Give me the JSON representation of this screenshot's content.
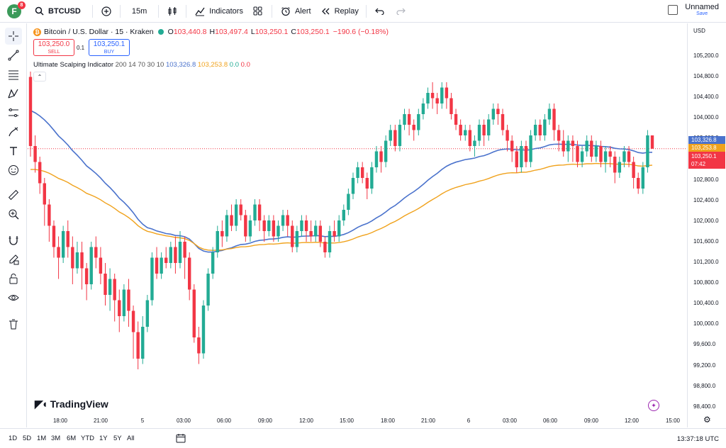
{
  "topbar": {
    "avatar_letter": "F",
    "avatar_badge": "8",
    "symbol": "BTCUSD",
    "interval": "15m",
    "indicators_label": "Indicators",
    "alert_label": "Alert",
    "replay_label": "Replay",
    "layout_title": "Unnamed",
    "layout_save": "Save"
  },
  "legend": {
    "title": "Bitcoin / U.S. Dollar · 15 · Kraken",
    "o_label": "O",
    "o_value": "103,440.8",
    "h_label": "H",
    "h_value": "103,497.4",
    "l_label": "L",
    "l_value": "103,250.1",
    "c_label": "C",
    "c_value": "103,250.1",
    "change": "−190.6 (−0.18%)"
  },
  "trade": {
    "sell_price": "103,250.0",
    "sell_label": "SELL",
    "spread": "0.1",
    "buy_price": "103,250.1",
    "buy_label": "BUY"
  },
  "indicator": {
    "name": "Ultimate Scalping Indicator",
    "params": "200 14 70 30 10",
    "v1": "103,326.8",
    "v2": "103,253.8",
    "v3": "0.0",
    "v4": "0.0"
  },
  "branding": "TradingView",
  "price_scale": {
    "currency": "USD",
    "ticks": [
      "105,200.0",
      "104,800.0",
      "104,400.0",
      "104,000.0",
      "103,600.0",
      "103,200.0",
      "102,800.0",
      "102,400.0",
      "102,000.0",
      "101,600.0",
      "101,200.0",
      "100,800.0",
      "100,400.0",
      "100,000.0",
      "99,600.0",
      "99,200.0",
      "98,800.0",
      "98,400.0"
    ],
    "tag_blue": "103,326.8",
    "tag_orange": "103,253.8",
    "tag_red": "103,250.1",
    "countdown": "07:42"
  },
  "time_ticks": [
    "18:00",
    "21:00",
    "5",
    "03:00",
    "06:00",
    "09:00",
    "12:00",
    "15:00",
    "18:00",
    "21:00",
    "6",
    "03:00",
    "06:00",
    "09:00",
    "12:00",
    "15:00"
  ],
  "ranges": [
    "1D",
    "5D",
    "1M",
    "3M",
    "6M",
    "YTD",
    "1Y",
    "5Y",
    "All"
  ],
  "clock": "13:37:18 UTC",
  "colors": {
    "up": "#22ab94",
    "down": "#f23645",
    "blue_line": "#4a72cc",
    "orange_line": "#f0a21c"
  },
  "chart_data": {
    "type": "candlestick",
    "ylim": [
      98300,
      105500
    ],
    "candles": [
      [
        104600,
        103300,
        104700,
        103100
      ],
      [
        103300,
        103000,
        103500,
        102800
      ],
      [
        103000,
        102600,
        103100,
        102400
      ],
      [
        102600,
        102200,
        102700,
        101800
      ],
      [
        102200,
        101800,
        102300,
        101500
      ],
      [
        101800,
        101400,
        101900,
        101200
      ],
      [
        101400,
        101200,
        101600,
        100800
      ],
      [
        101200,
        101700,
        101800,
        101100
      ],
      [
        101700,
        101400,
        101900,
        101200
      ],
      [
        101400,
        101000,
        101600,
        100700
      ],
      [
        101000,
        101300,
        101500,
        100900
      ],
      [
        101300,
        101000,
        101500,
        100600
      ],
      [
        101000,
        100700,
        101100,
        100400
      ],
      [
        100700,
        101400,
        101500,
        100600
      ],
      [
        101400,
        101200,
        101600,
        101000
      ],
      [
        101200,
        100900,
        101400,
        100700
      ],
      [
        100900,
        100500,
        101100,
        100300
      ],
      [
        100500,
        100800,
        101000,
        100200
      ],
      [
        100800,
        100400,
        100900,
        100000
      ],
      [
        100400,
        100100,
        100600,
        99800
      ],
      [
        100100,
        100600,
        100700,
        100000
      ],
      [
        100600,
        100200,
        100800,
        99900
      ],
      [
        100200,
        99800,
        100300,
        99300
      ],
      [
        99800,
        99300,
        100000,
        99100
      ],
      [
        99300,
        99900,
        100100,
        99200
      ],
      [
        99900,
        100400,
        100500,
        99800
      ],
      [
        100400,
        101200,
        101300,
        100300
      ],
      [
        101200,
        100900,
        101400,
        100800
      ],
      [
        100900,
        101200,
        101300,
        100800
      ],
      [
        101200,
        101100,
        101400,
        101000
      ],
      [
        101100,
        101400,
        101500,
        101000
      ],
      [
        101400,
        101100,
        101600,
        100900
      ],
      [
        101100,
        101500,
        101700,
        101000
      ],
      [
        101500,
        101200,
        101600,
        100800
      ],
      [
        101200,
        100600,
        101300,
        100400
      ],
      [
        100600,
        99700,
        100700,
        99600
      ],
      [
        99700,
        99400,
        99900,
        99200
      ],
      [
        99400,
        100300,
        100400,
        99300
      ],
      [
        100300,
        100900,
        101000,
        100200
      ],
      [
        100900,
        101300,
        101400,
        100800
      ],
      [
        101300,
        101700,
        101800,
        101200
      ],
      [
        101700,
        101600,
        101900,
        101400
      ],
      [
        101600,
        102000,
        102100,
        101500
      ],
      [
        102000,
        101800,
        102200,
        101700
      ],
      [
        101800,
        102200,
        102300,
        101700
      ],
      [
        102200,
        102000,
        102300,
        101900
      ],
      [
        102000,
        101600,
        102100,
        101500
      ],
      [
        101600,
        101900,
        102000,
        101500
      ],
      [
        101900,
        102200,
        102300,
        101800
      ],
      [
        102200,
        101900,
        102300,
        101700
      ],
      [
        101900,
        101700,
        102000,
        101500
      ],
      [
        101700,
        101900,
        102000,
        101600
      ],
      [
        101900,
        101600,
        102000,
        101500
      ],
      [
        101600,
        101800,
        101900,
        101500
      ],
      [
        101800,
        102000,
        102100,
        101700
      ],
      [
        102000,
        101800,
        102100,
        101600
      ],
      [
        101800,
        101400,
        101900,
        101300
      ],
      [
        101400,
        101700,
        101800,
        101300
      ],
      [
        101700,
        101900,
        102000,
        101600
      ],
      [
        101900,
        101700,
        102000,
        101500
      ],
      [
        101700,
        101600,
        101900,
        101500
      ],
      [
        101600,
        101800,
        101900,
        101500
      ],
      [
        101800,
        101500,
        101900,
        101400
      ],
      [
        101500,
        101300,
        101600,
        101200
      ],
      [
        101300,
        101700,
        101800,
        101200
      ],
      [
        101700,
        101600,
        101900,
        101500
      ],
      [
        101600,
        101900,
        102000,
        101500
      ],
      [
        101900,
        102100,
        102200,
        101800
      ],
      [
        102100,
        102400,
        102500,
        102000
      ],
      [
        102400,
        102700,
        102800,
        102300
      ],
      [
        102700,
        102900,
        103000,
        102600
      ],
      [
        102900,
        102700,
        103000,
        102600
      ],
      [
        102700,
        102500,
        102800,
        102300
      ],
      [
        102500,
        102900,
        103000,
        102400
      ],
      [
        102900,
        103200,
        103300,
        102800
      ],
      [
        103200,
        103000,
        103300,
        102800
      ],
      [
        103000,
        103400,
        103500,
        102900
      ],
      [
        103400,
        103600,
        103700,
        103300
      ],
      [
        103600,
        103300,
        103700,
        103200
      ],
      [
        103300,
        103700,
        103800,
        103200
      ],
      [
        103700,
        103900,
        104000,
        103600
      ],
      [
        103900,
        103700,
        104000,
        103500
      ],
      [
        103700,
        103600,
        103800,
        103400
      ],
      [
        103600,
        103900,
        104000,
        103500
      ],
      [
        103900,
        104100,
        104200,
        103800
      ],
      [
        104100,
        104300,
        104400,
        104000
      ],
      [
        104300,
        104200,
        104500,
        104000
      ],
      [
        104200,
        104100,
        104300,
        103900
      ],
      [
        104100,
        104400,
        104500,
        104000
      ],
      [
        104400,
        104200,
        104500,
        104000
      ],
      [
        104200,
        103900,
        104300,
        103800
      ],
      [
        103900,
        103700,
        104000,
        103600
      ],
      [
        103700,
        103500,
        103800,
        103400
      ],
      [
        103500,
        103600,
        103700,
        103400
      ],
      [
        103600,
        103300,
        103700,
        103200
      ],
      [
        103300,
        103400,
        103500,
        103100
      ],
      [
        103400,
        103700,
        103800,
        103300
      ],
      [
        103700,
        103500,
        103800,
        103300
      ],
      [
        103500,
        103800,
        103900,
        103400
      ],
      [
        103800,
        104000,
        104100,
        103700
      ],
      [
        104000,
        103900,
        104100,
        103700
      ],
      [
        103900,
        103600,
        104000,
        103500
      ],
      [
        103600,
        103400,
        103700,
        103200
      ],
      [
        103400,
        103200,
        103500,
        103000
      ],
      [
        103200,
        102900,
        103300,
        102800
      ],
      [
        102900,
        103300,
        103400,
        102800
      ],
      [
        103300,
        103000,
        103400,
        102900
      ],
      [
        103000,
        103500,
        103600,
        102900
      ],
      [
        103500,
        103700,
        103800,
        103400
      ],
      [
        103700,
        103500,
        103800,
        103400
      ],
      [
        103500,
        103800,
        103900,
        103400
      ],
      [
        103800,
        104000,
        104100,
        103700
      ],
      [
        104000,
        103600,
        104100,
        103400
      ],
      [
        103600,
        103400,
        103700,
        103200
      ],
      [
        103400,
        103200,
        103600,
        103100
      ],
      [
        103200,
        103400,
        103500,
        103000
      ],
      [
        103400,
        103300,
        103500,
        103000
      ],
      [
        103300,
        103000,
        103400,
        102900
      ],
      [
        103000,
        103200,
        103300,
        102900
      ],
      [
        103200,
        103400,
        103500,
        103100
      ],
      [
        103400,
        103100,
        103500,
        103000
      ],
      [
        103100,
        103300,
        103400,
        103000
      ],
      [
        103300,
        103000,
        103400,
        102900
      ],
      [
        103000,
        103200,
        103300,
        102800
      ],
      [
        103200,
        103100,
        103300,
        102900
      ],
      [
        103100,
        102800,
        103200,
        102600
      ],
      [
        102800,
        103000,
        103100,
        102700
      ],
      [
        103000,
        103200,
        103300,
        102900
      ],
      [
        103200,
        103000,
        103300,
        102900
      ],
      [
        103000,
        102700,
        103100,
        102500
      ],
      [
        102700,
        102500,
        102800,
        102400
      ],
      [
        102500,
        102900,
        103000,
        102400
      ],
      [
        102900,
        103500,
        103600,
        102800
      ],
      [
        103500,
        103250,
        103500,
        103250
      ]
    ]
  }
}
